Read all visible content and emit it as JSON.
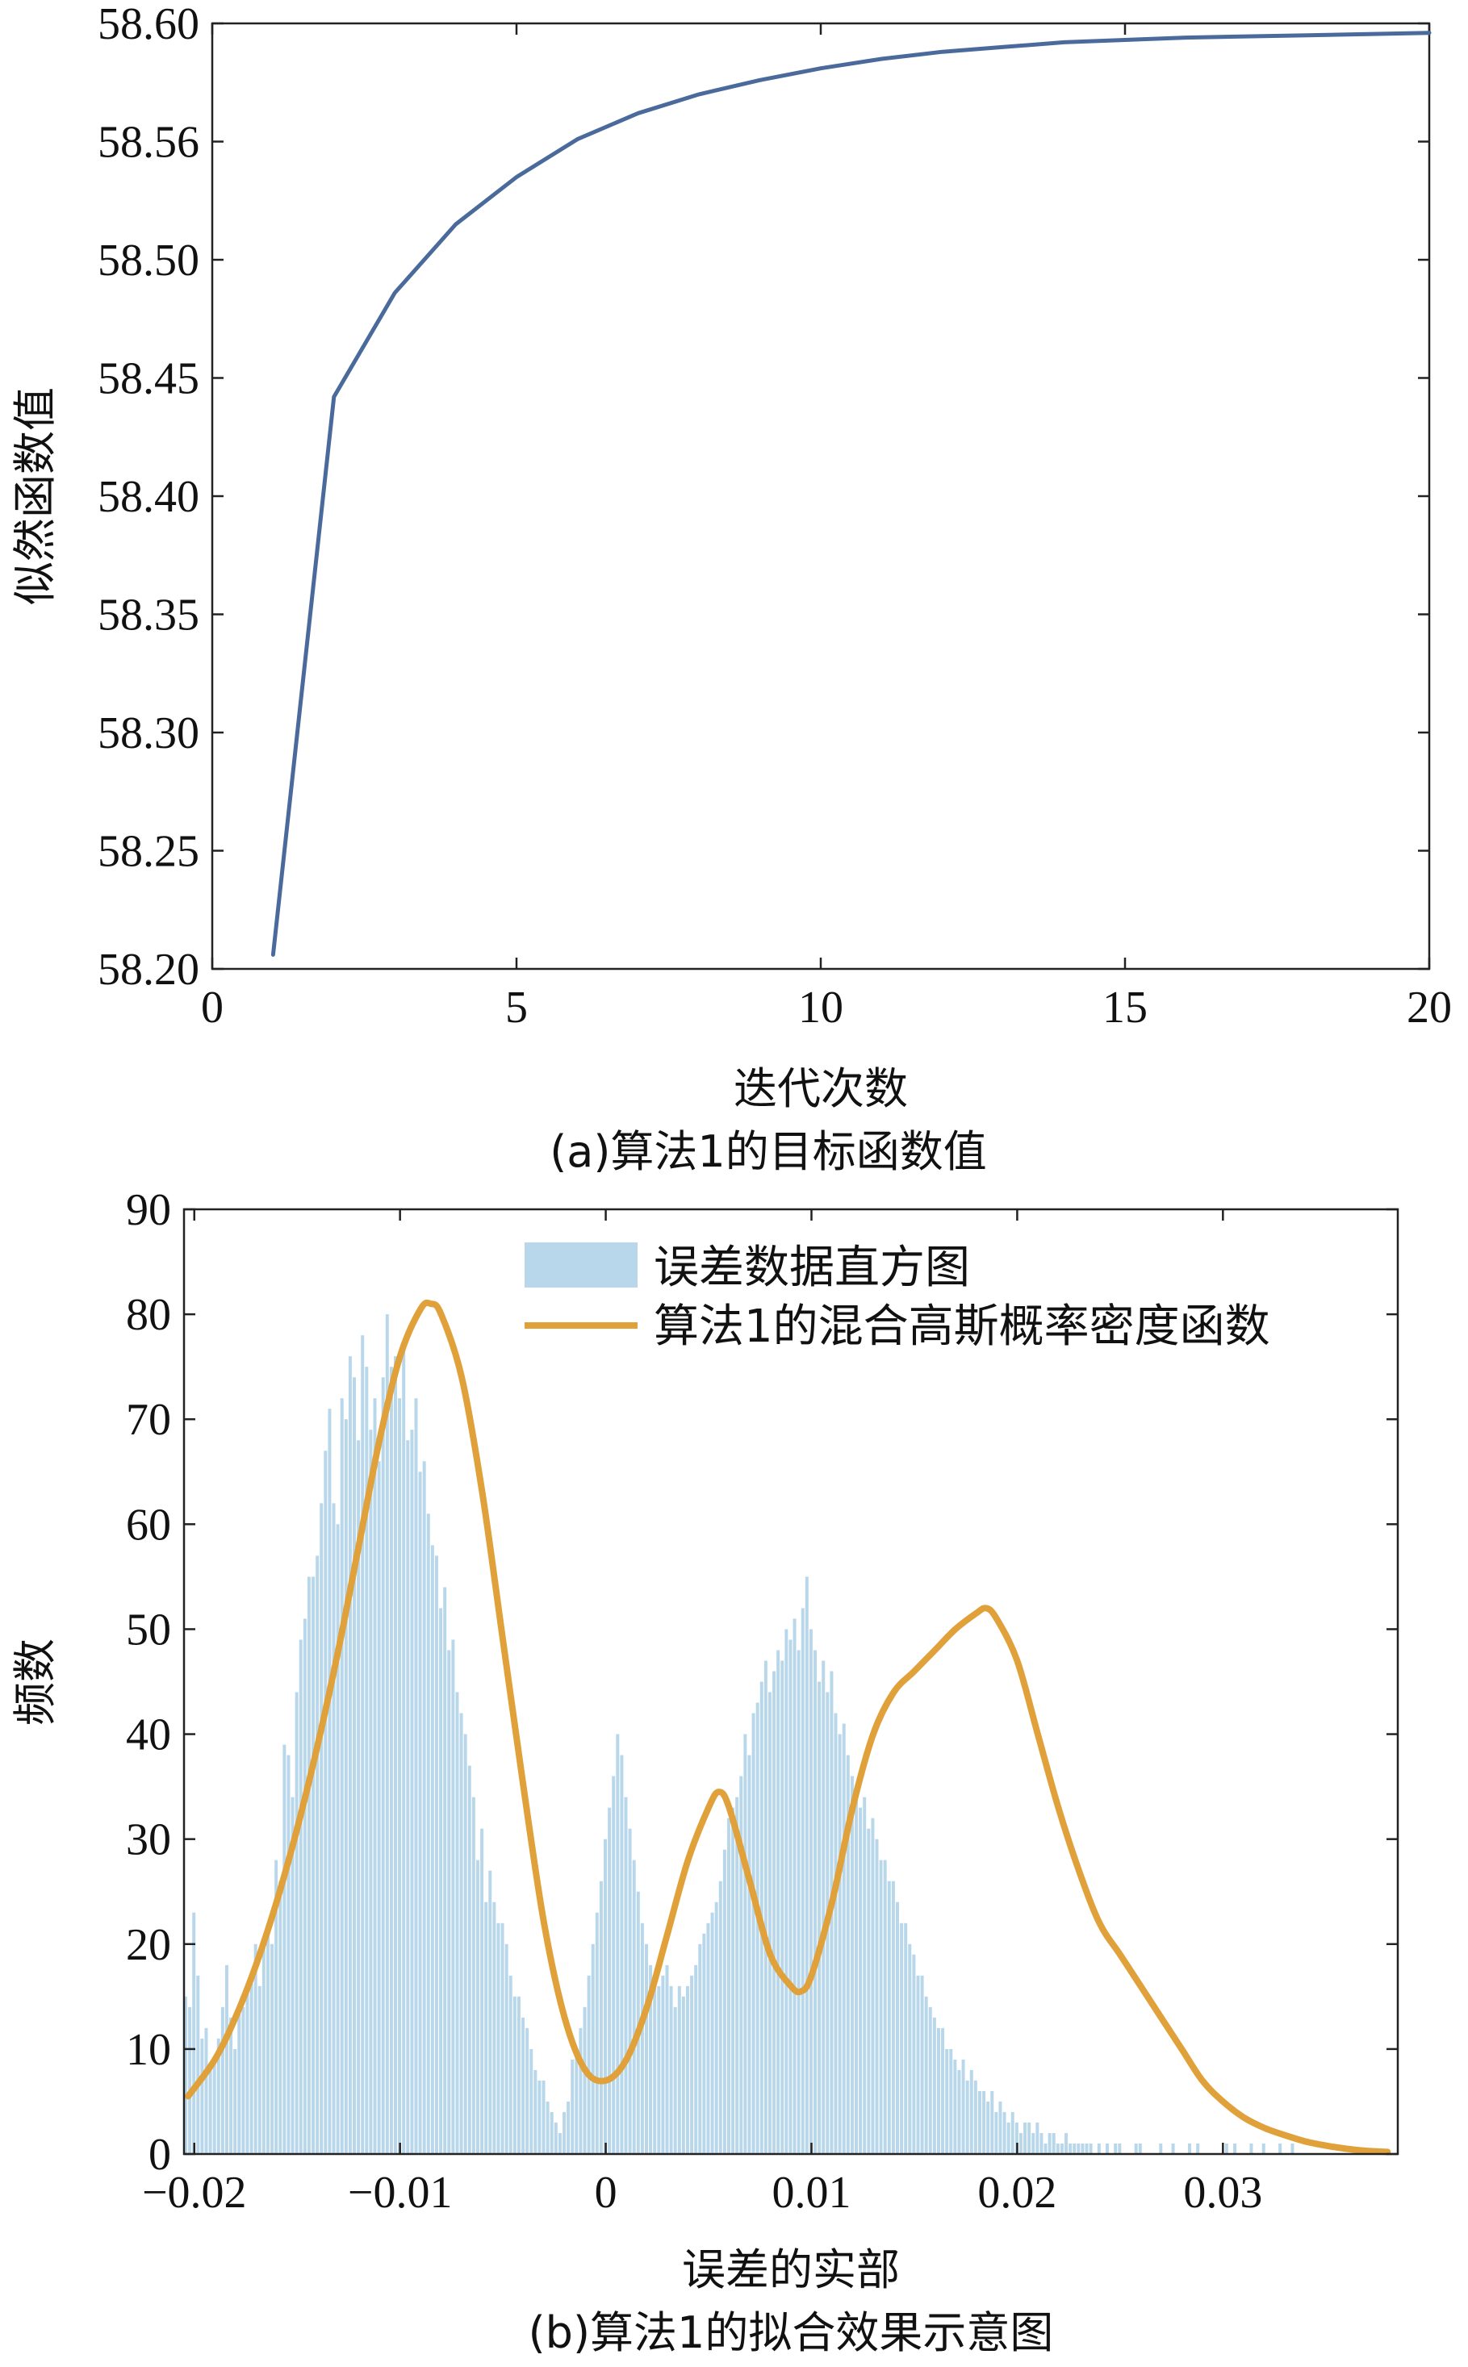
{
  "chart_data": [
    {
      "type": "line",
      "caption": "(a)算法1的目标函数值",
      "xlabel": "迭代次数",
      "ylabel": "似然函数值",
      "xlim": [
        0,
        20
      ],
      "ylim": [
        58.2,
        58.6
      ],
      "xticks": [
        "0",
        "5",
        "10",
        "15",
        "20"
      ],
      "yticks": [
        "58.20",
        "58.25",
        "58.30",
        "58.35",
        "58.40",
        "58.45",
        "58.50",
        "58.56",
        "58.60"
      ],
      "grid": false,
      "series": [
        {
          "color": "#4a6a9b",
          "x": [
            1,
            2,
            3,
            4,
            5,
            6,
            7,
            8,
            9,
            10,
            11,
            12,
            13,
            14,
            15,
            16,
            17,
            18,
            19,
            20
          ],
          "y": [
            58.206,
            58.442,
            58.486,
            58.515,
            58.535,
            58.551,
            58.562,
            58.57,
            58.576,
            58.581,
            58.585,
            58.588,
            58.59,
            58.592,
            58.593,
            58.594,
            58.5945,
            58.595,
            58.5955,
            58.596
          ]
        }
      ]
    },
    {
      "type": "bar",
      "caption": "(b)算法1的拟合效果示意图",
      "xlabel": "误差的实部",
      "ylabel": "频数",
      "xlim": [
        -0.0205,
        0.0385
      ],
      "ylim": [
        0,
        90
      ],
      "xticks": [
        "−0.02",
        "−0.01",
        "0",
        "0.01",
        "0.02",
        "0.03"
      ],
      "yticks": [
        "0",
        "10",
        "20",
        "30",
        "40",
        "50",
        "60",
        "70",
        "80",
        "90"
      ],
      "grid": false,
      "legend_position": "top-right",
      "histogram": {
        "name": "误差数据直方图",
        "color": "#b9d7ea",
        "bin_start": -0.0205,
        "bin_width": 0.0002,
        "counts": [
          15,
          14,
          23,
          17,
          11,
          12,
          8,
          9,
          11,
          14,
          18,
          13,
          10,
          14,
          14,
          16,
          17,
          20,
          16,
          20,
          22,
          20,
          28,
          26,
          39,
          38,
          34,
          44,
          49,
          51,
          55,
          55,
          57,
          62,
          67,
          71,
          62,
          60,
          72,
          70,
          76,
          74,
          68,
          78,
          75,
          69,
          72,
          66,
          74,
          80,
          75,
          76,
          72,
          77,
          68,
          69,
          72,
          65,
          66,
          61,
          58,
          57,
          52,
          54,
          48,
          49,
          44,
          42,
          40,
          37,
          34,
          28,
          31,
          24,
          27,
          24,
          22,
          22,
          20,
          17,
          15,
          15,
          13,
          12,
          10,
          8,
          7,
          7,
          5,
          4,
          3,
          2,
          4,
          5,
          9,
          10,
          12,
          14,
          17,
          20,
          23,
          26,
          30,
          33,
          36,
          40,
          38,
          34,
          31,
          28,
          25,
          22,
          20,
          18,
          17,
          16,
          17,
          18,
          16,
          14,
          16,
          15,
          16,
          17,
          18,
          20,
          21,
          22,
          23,
          24,
          26,
          29,
          32,
          33,
          34,
          36,
          40,
          38,
          42,
          43,
          45,
          47,
          44,
          46,
          48,
          47,
          50,
          49,
          51,
          48,
          52,
          55,
          50,
          48,
          45,
          47,
          44,
          46,
          42,
          40,
          41,
          38,
          36,
          35,
          33,
          34,
          31,
          32,
          30,
          28,
          28,
          26,
          26,
          24,
          22,
          22,
          20,
          19,
          17,
          17,
          15,
          14,
          13,
          12,
          12,
          10,
          10,
          9,
          8,
          9,
          7,
          8,
          7,
          6,
          6,
          5,
          6,
          4,
          5,
          4,
          3,
          4,
          3,
          2,
          3,
          3,
          2,
          3,
          2,
          1,
          2,
          2,
          1,
          1,
          2,
          1,
          1,
          1,
          1,
          1,
          1,
          0,
          1,
          0,
          1,
          0,
          1,
          1,
          0,
          0,
          0,
          1,
          1,
          0,
          0,
          0,
          0,
          1,
          0,
          0,
          1,
          0,
          0,
          0,
          1,
          0,
          1,
          0,
          0,
          0,
          0,
          0,
          0,
          1,
          0,
          1,
          0,
          0,
          0,
          1,
          0,
          0,
          1,
          0,
          0,
          0,
          1,
          0,
          0,
          1
        ]
      },
      "curve": {
        "name": "算法1的混合高斯概率密度函数",
        "color": "#e0a13a",
        "x": [
          -0.0203,
          -0.019,
          -0.018,
          -0.017,
          -0.016,
          -0.015,
          -0.014,
          -0.013,
          -0.012,
          -0.011,
          -0.01,
          -0.009,
          -0.0085,
          -0.008,
          -0.007,
          -0.006,
          -0.005,
          -0.004,
          -0.003,
          -0.002,
          -0.001,
          0.0,
          0.001,
          0.002,
          0.003,
          0.004,
          0.005,
          0.0055,
          0.006,
          0.007,
          0.008,
          0.009,
          0.0095,
          0.01,
          0.011,
          0.012,
          0.013,
          0.014,
          0.015,
          0.016,
          0.017,
          0.018,
          0.0185,
          0.019,
          0.02,
          0.021,
          0.022,
          0.023,
          0.024,
          0.025,
          0.026,
          0.027,
          0.028,
          0.029,
          0.03,
          0.031,
          0.032,
          0.033,
          0.034,
          0.035,
          0.036,
          0.037,
          0.038
        ],
        "y": [
          5.5,
          9,
          13,
          18,
          24,
          31,
          39,
          48,
          58,
          68,
          76,
          80.5,
          81,
          80,
          74,
          63,
          49,
          35,
          22,
          13,
          8,
          7,
          9,
          14,
          21,
          28,
          33,
          34.5,
          33,
          26,
          19,
          16,
          15.5,
          17,
          24,
          33,
          40,
          44,
          46,
          48,
          50,
          51.5,
          52,
          51,
          47,
          40,
          33,
          27,
          22,
          19,
          16,
          13,
          10,
          7,
          5,
          3.5,
          2.5,
          1.8,
          1.2,
          0.8,
          0.5,
          0.3,
          0.2
        ]
      }
    }
  ]
}
